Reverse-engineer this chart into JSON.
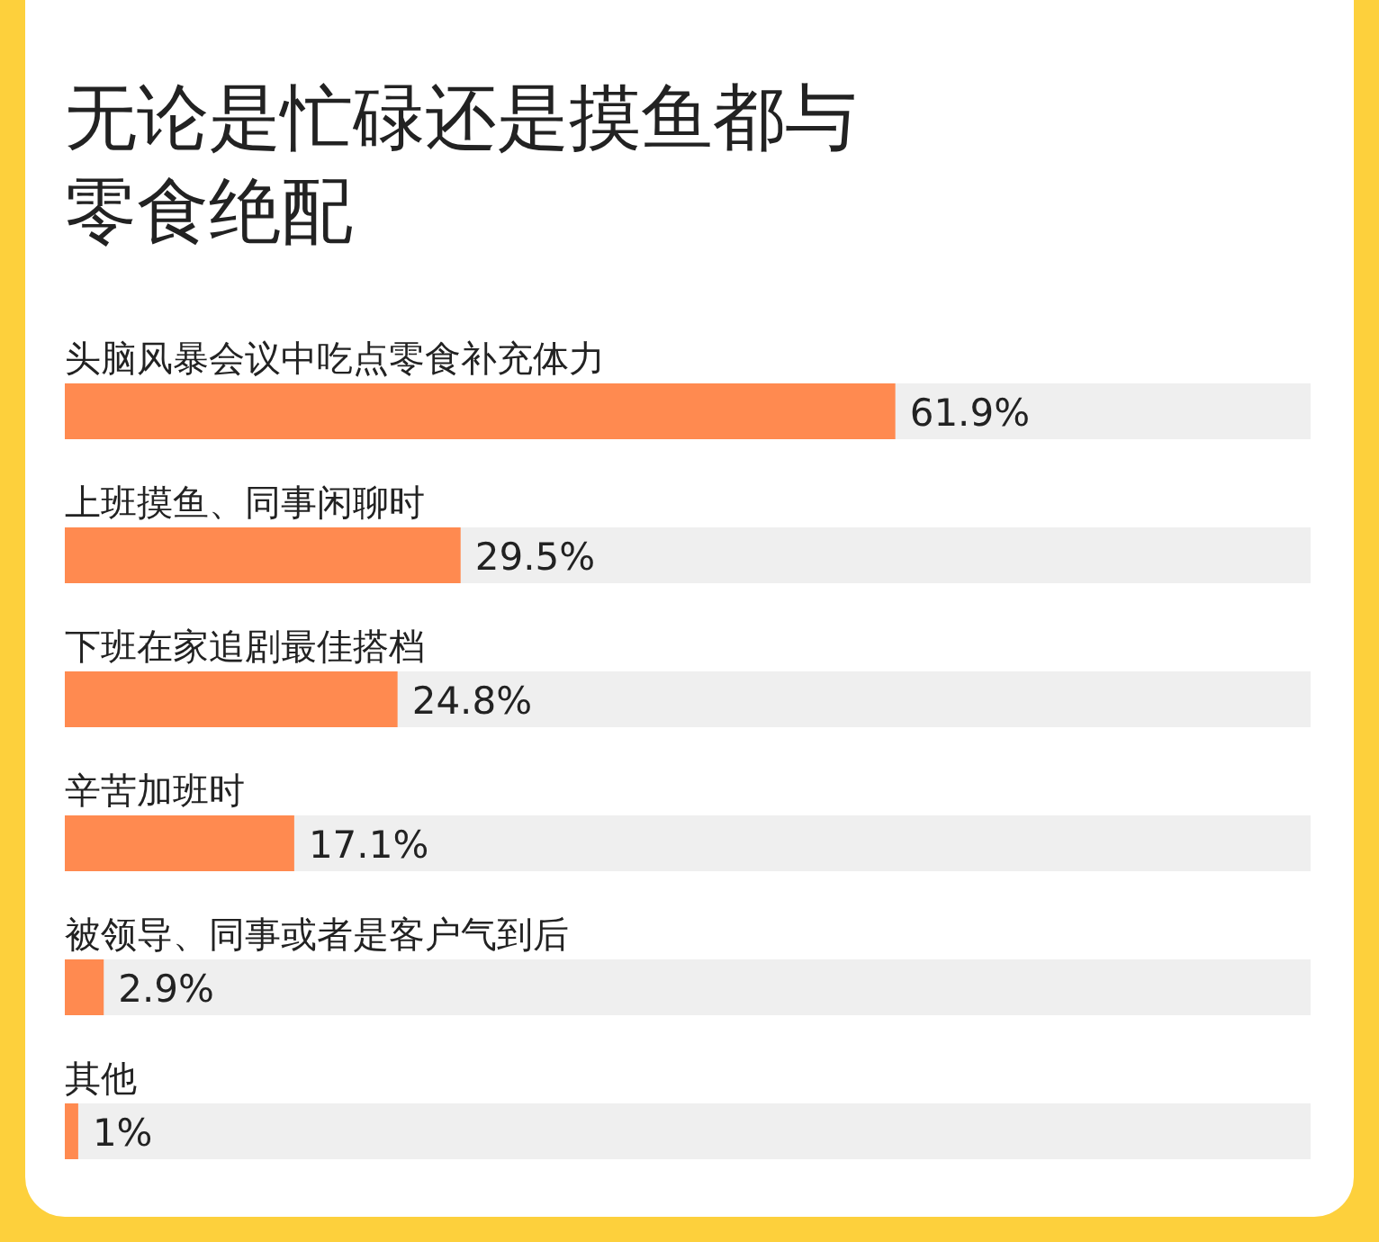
{
  "chart_data": {
    "type": "bar",
    "orientation": "horizontal",
    "tick_labels": false,
    "title": "无论是忙碌还是摸鱼都与零食绝配",
    "categories": [
      "头脑风暴会议中吃点零食补充体力",
      "上班摸鱼、同事闲聊时",
      "下班在家追剧最佳搭档",
      "辛苦加班时",
      "被领导、同事或者是客户气到后",
      "其他"
    ],
    "values": [
      61.9,
      29.5,
      24.8,
      17.1,
      2.9,
      1
    ],
    "value_labels": [
      "61.9%",
      "29.5%",
      "24.8%",
      "17.1%",
      "2.9%",
      "1%"
    ],
    "color": "#ff8a50"
  }
}
